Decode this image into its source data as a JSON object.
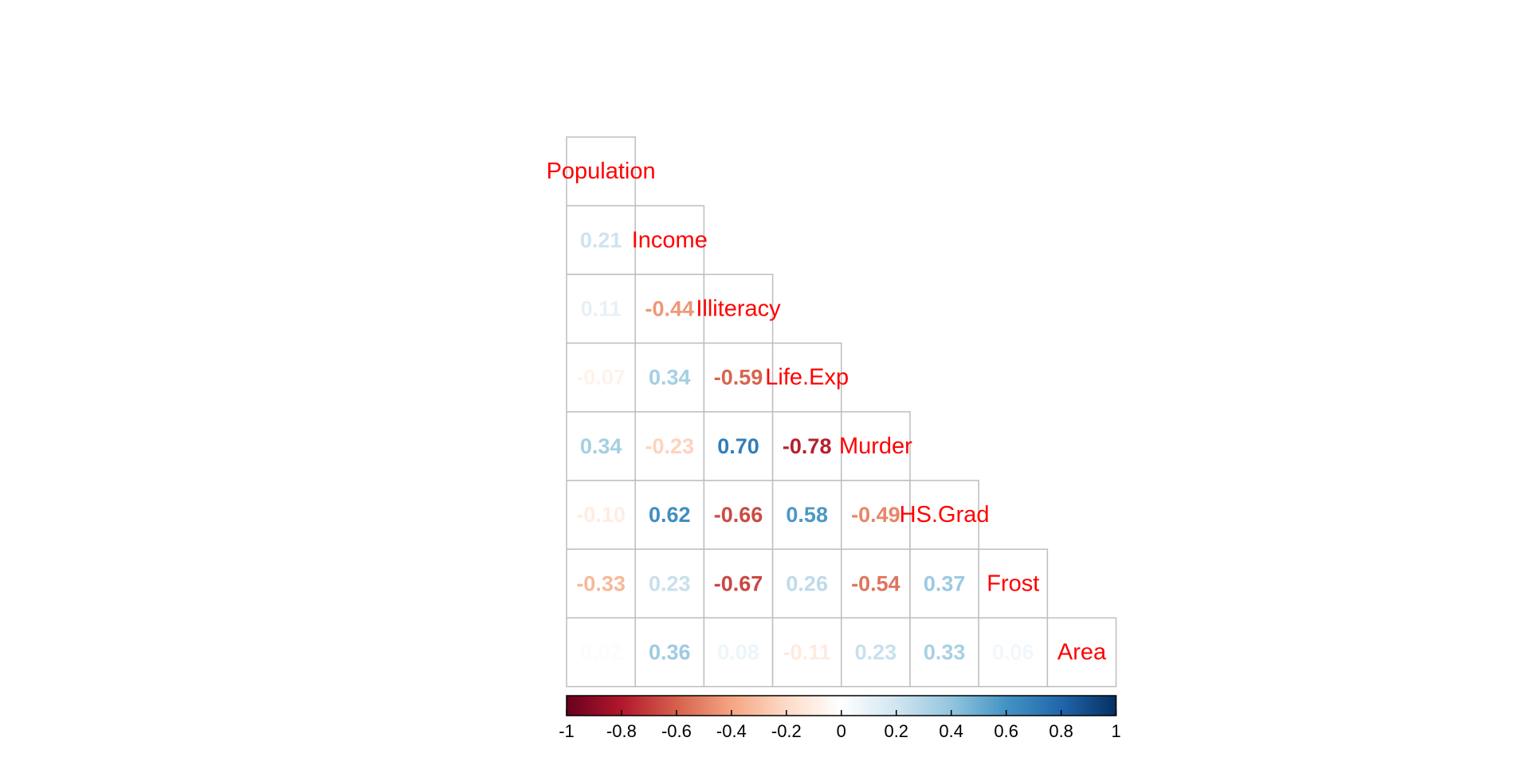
{
  "chart_data": {
    "type": "heatmap",
    "variables": [
      "Population",
      "Income",
      "Illiteracy",
      "Life.Exp",
      "Murder",
      "HS.Grad",
      "Frost",
      "Area"
    ],
    "lower_triangle": [
      [],
      [
        "0.21"
      ],
      [
        "0.11",
        "-0.44"
      ],
      [
        "-0.07",
        "0.34",
        "-0.59"
      ],
      [
        "0.34",
        "-0.23",
        "0.70",
        "-0.78"
      ],
      [
        "-0.10",
        "0.62",
        "-0.66",
        "0.58",
        "-0.49"
      ],
      [
        "-0.33",
        "0.23",
        "-0.67",
        "0.26",
        "-0.54",
        "0.37"
      ],
      [
        "0.02",
        "0.36",
        "0.08",
        "-0.11",
        "0.23",
        "0.33",
        "0.06"
      ]
    ],
    "colorbar": {
      "range": [
        -1,
        1
      ],
      "ticks": [
        "-1",
        "-0.8",
        "-0.6",
        "-0.4",
        "-0.2",
        "0",
        "0.2",
        "0.4",
        "0.6",
        "0.8",
        "1"
      ],
      "palette": [
        "#67001F",
        "#B2182B",
        "#D6604D",
        "#F4A582",
        "#FDDBC7",
        "#FFFFFF",
        "#D1E5F0",
        "#92C5DE",
        "#4393C3",
        "#2166AC",
        "#053061"
      ]
    },
    "label_color": "#FF0000",
    "grid_color": "#BEBEBE"
  }
}
